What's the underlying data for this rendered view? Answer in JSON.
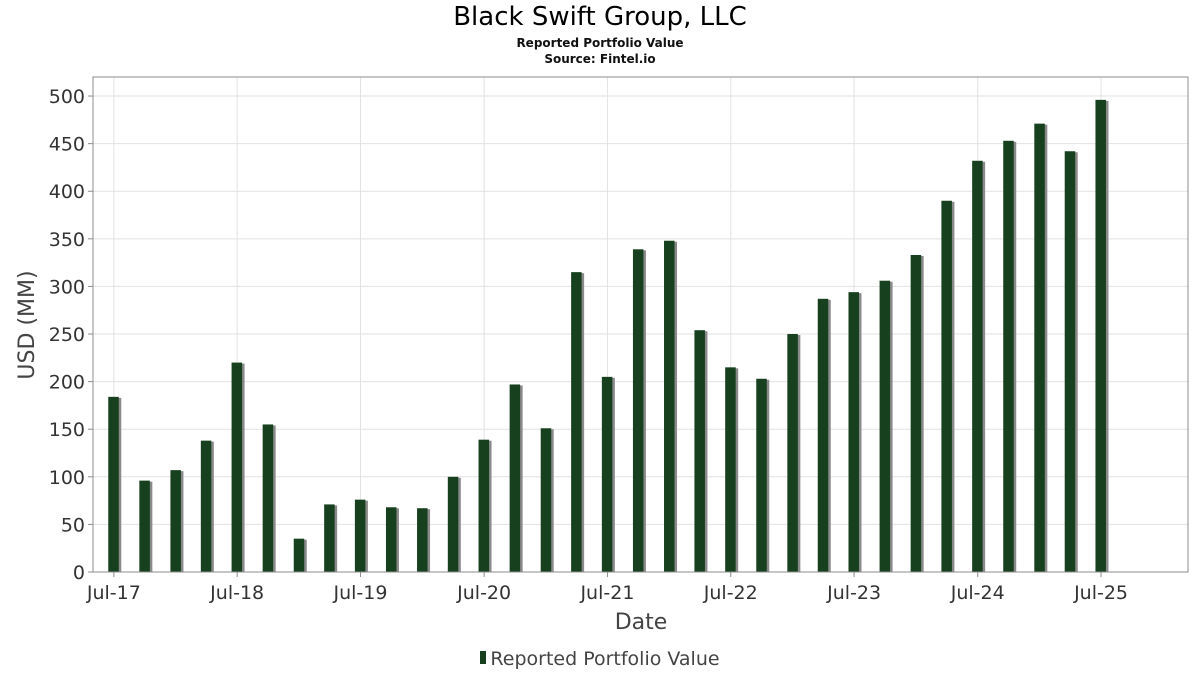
{
  "header": {
    "title": "Black Swift Group, LLC",
    "subtitle": "Reported Portfolio Value",
    "source": "Source: Fintel.io"
  },
  "colors": {
    "bar": "#17401f",
    "bar_shadow": "#8a8a8a",
    "grid": "#e2e2e2",
    "axis": "#8c8c8c"
  },
  "chart_data": {
    "type": "bar",
    "title": "Black Swift Group, LLC",
    "subtitle": "Reported Portfolio Value",
    "xlabel": "Date",
    "ylabel": "USD (MM)",
    "ylim": [
      0,
      520
    ],
    "y_ticks": [
      0,
      50,
      100,
      150,
      200,
      250,
      300,
      350,
      400,
      450,
      500
    ],
    "x_tick_labels": [
      "Jul-17",
      "Jul-18",
      "Jul-19",
      "Jul-20",
      "Jul-21",
      "Jul-22",
      "Jul-23",
      "Jul-24",
      "Jul-25"
    ],
    "grid": true,
    "legend": {
      "position": "bottom",
      "entries": [
        "Reported Portfolio Value"
      ]
    },
    "series": [
      {
        "name": "Reported Portfolio Value",
        "x": [
          "2017-06-30",
          "2017-09-30",
          "2017-12-31",
          "2018-03-31",
          "2018-06-30",
          "2018-09-30",
          "2018-12-31",
          "2019-03-31",
          "2019-06-30",
          "2019-09-30",
          "2019-12-31",
          "2020-03-31",
          "2020-06-30",
          "2020-09-30",
          "2020-12-31",
          "2021-03-31",
          "2021-06-30",
          "2021-09-30",
          "2021-12-31",
          "2022-03-31",
          "2022-06-30",
          "2022-09-30",
          "2022-12-31",
          "2023-03-31",
          "2023-06-30",
          "2023-09-30",
          "2023-12-31",
          "2024-03-31",
          "2024-06-30",
          "2024-09-30",
          "2024-12-31",
          "2025-03-31",
          "2025-06-30"
        ],
        "values": [
          184,
          96,
          107,
          138,
          220,
          155,
          35,
          71,
          76,
          68,
          67,
          100,
          139,
          197,
          151,
          315,
          205,
          339,
          348,
          254,
          215,
          203,
          250,
          287,
          294,
          306,
          333,
          390,
          432,
          453,
          471,
          442,
          496
        ]
      }
    ]
  }
}
